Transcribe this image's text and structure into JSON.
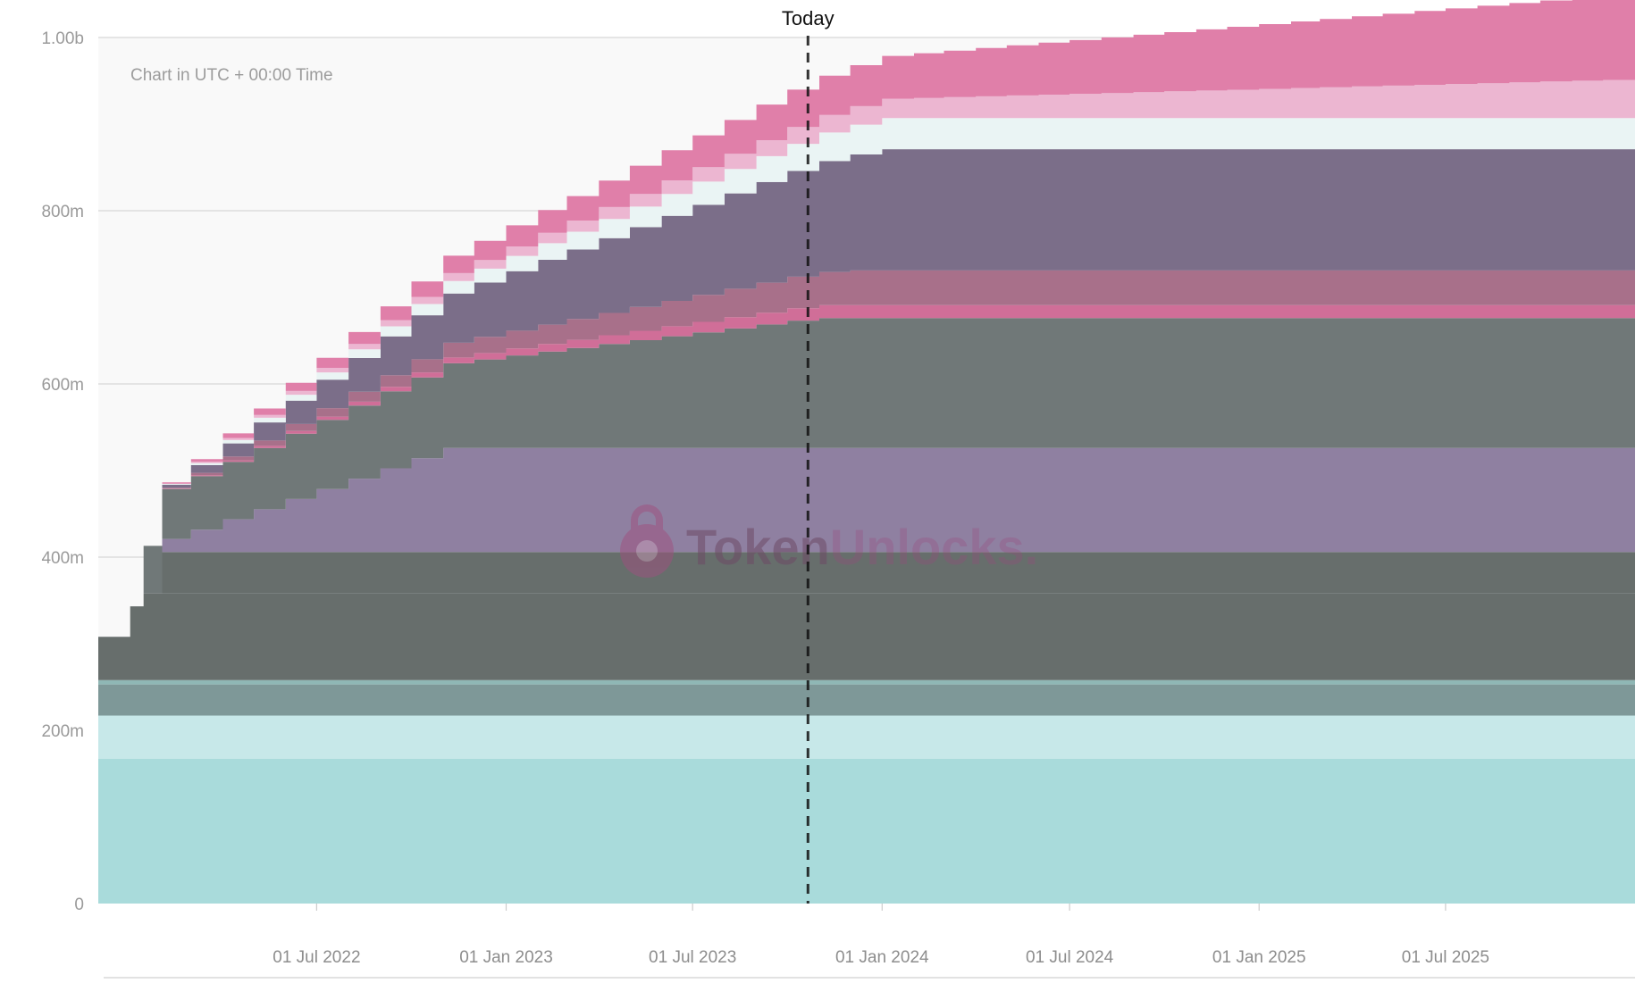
{
  "chart_data": {
    "type": "area",
    "stacked": true,
    "stepped": true,
    "note": "Chart in UTC + 00:00 Time",
    "today": {
      "label": "Today",
      "date": "2023-10-21"
    },
    "watermark": {
      "part1": "Token",
      "part2": "Unlocks."
    },
    "ylim": [
      0,
      1000000000
    ],
    "y_ticks": [
      {
        "value": 0,
        "label": "0"
      },
      {
        "value": 200000000,
        "label": "200m"
      },
      {
        "value": 400000000,
        "label": "400m"
      },
      {
        "value": 600000000,
        "label": "600m"
      },
      {
        "value": 800000000,
        "label": "800m"
      },
      {
        "value": 1000000000,
        "label": "1.00b"
      }
    ],
    "x_range": [
      "2021-12-01",
      "2026-01-01"
    ],
    "x_ticks": [
      {
        "date": "2022-07-01",
        "label": "01 Jul 2022"
      },
      {
        "date": "2023-01-01",
        "label": "01 Jan 2023"
      },
      {
        "date": "2023-07-01",
        "label": "01 Jul 2023"
      },
      {
        "date": "2024-01-01",
        "label": "01 Jan 2024"
      },
      {
        "date": "2024-07-01",
        "label": "01 Jul 2024"
      },
      {
        "date": "2025-01-01",
        "label": "01 Jan 2025"
      },
      {
        "date": "2025-07-01",
        "label": "01 Jul 2025"
      }
    ],
    "series": [
      {
        "color": "#a9dbdb",
        "opacity": 1,
        "cliff": 167000000,
        "start": "2021-12-01",
        "end": "2021-12-01",
        "total": 0
      },
      {
        "color": "#c7e8e9",
        "opacity": 1,
        "cliff": 50000000,
        "start": "2021-12-01",
        "end": "2021-12-01",
        "total": 0
      },
      {
        "color": "#7e9898",
        "opacity": 1,
        "cliff": 36000000,
        "start": "2021-12-01",
        "end": "2021-12-01",
        "total": 0
      },
      {
        "color": "#8fb7b5",
        "opacity": 1,
        "cliff": 5000000,
        "start": "2021-12-01",
        "end": "2021-12-01",
        "total": 0
      },
      {
        "color": "#676e6c",
        "opacity": 1,
        "cliff": 50000000,
        "start": "2021-12-01",
        "end": "2022-01-14",
        "total": 50000000
      },
      {
        "color": "#676e6c",
        "opacity": 1,
        "cliff": 0,
        "start": "2022-01-14",
        "end": "2022-01-15",
        "total": 48000000
      },
      {
        "color": "#8f80a1",
        "opacity": 1,
        "cliff": 15000000,
        "start": "2022-02-01",
        "end": "2022-11-01",
        "total": 105000000
      },
      {
        "color": "#707878",
        "opacity": 1,
        "cliff": 55000000,
        "start": "2022-01-14",
        "end": "2023-10-21",
        "total": 95000000
      },
      {
        "color": "#d06e98",
        "opacity": 1,
        "cliff": 0,
        "start": "2022-01-14",
        "end": "2023-11-01",
        "total": 15000000
      },
      {
        "color": "#a8708a",
        "opacity": 1,
        "cliff": 0,
        "start": "2022-01-14",
        "end": "2023-12-01",
        "total": 40000000
      },
      {
        "color": "#7b6e89",
        "opacity": 1,
        "cliff": 0,
        "start": "2022-01-14",
        "end": "2024-01-01",
        "total": 140000000
      },
      {
        "color": "#eaf4f4",
        "opacity": 1,
        "cliff": 0,
        "start": "2022-01-14",
        "end": "2024-01-01",
        "total": 36000000
      },
      {
        "color": "#ecb6d1",
        "opacity": 1,
        "cliff": 0,
        "start": "2022-01-14",
        "end": "2026-01-01",
        "total": 45000000
      },
      {
        "color": "#e07fa9",
        "opacity": 1,
        "cliff": 0,
        "start": "2022-01-14",
        "end": "2026-01-01",
        "total": 100000000
      }
    ]
  }
}
